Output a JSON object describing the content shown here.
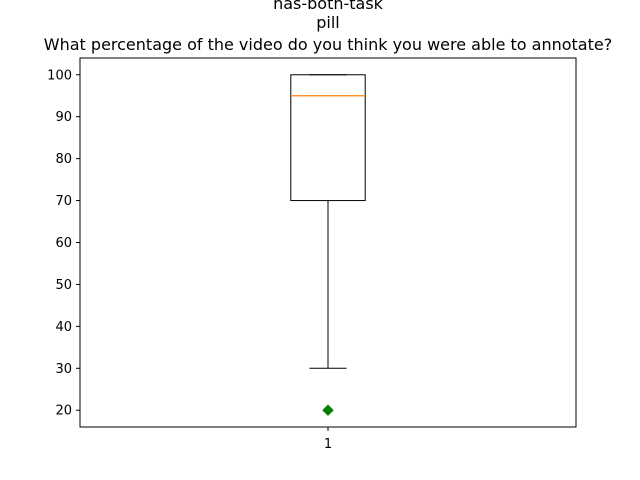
{
  "chart_data": {
    "type": "box",
    "title_lines": [
      "has-both-task",
      "pill",
      "What percentage of the video do you think you were able to annotate?"
    ],
    "xlabel": "",
    "ylabel": "",
    "categories": [
      "1"
    ],
    "ylim": [
      16,
      104
    ],
    "yticks": [
      20,
      30,
      40,
      50,
      60,
      70,
      80,
      90,
      100
    ],
    "grid": false,
    "boxes": [
      {
        "category": "1",
        "whisker_low": 30,
        "q1": 70,
        "median": 95,
        "q3": 100,
        "whisker_high": 100,
        "outliers": [
          20
        ]
      }
    ],
    "colors": {
      "box": "#000000",
      "median": "#ff7f0e",
      "outlier": "#008000"
    }
  }
}
